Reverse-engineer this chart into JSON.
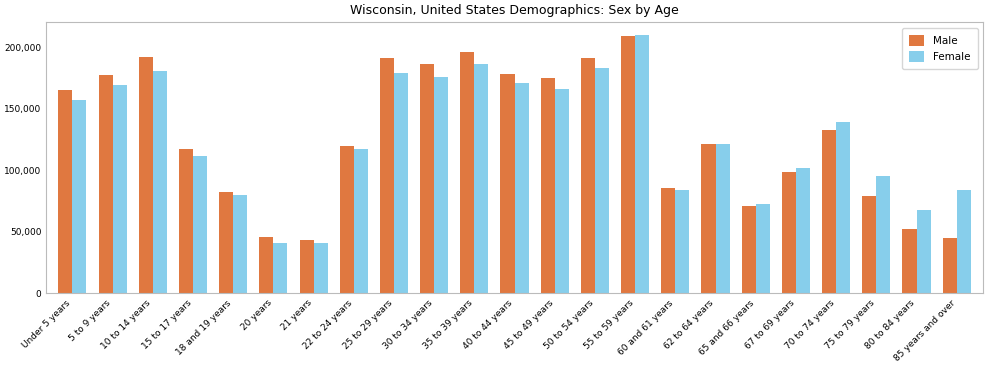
{
  "title": "Wisconsin, United States Demographics: Sex by Age",
  "categories": [
    "Under 5 years",
    "5 to 9 years",
    "10 to 14 years",
    "15 to 17 years",
    "18 and 19 years",
    "20 years",
    "21 years",
    "22 to 24 years",
    "25 to 29 years",
    "30 to 34 years",
    "35 to 39 years",
    "40 to 44 years",
    "45 to 49 years",
    "50 to 54 years",
    "55 to 59 years",
    "60 and 61 years",
    "62 to 64 years",
    "65 and 66 years",
    "67 to 69 years",
    "70 to 74 years",
    "75 to 79 years",
    "80 to 84 years",
    "85 years and over"
  ],
  "male": [
    165000,
    177000,
    192000,
    117000,
    82000,
    46000,
    43000,
    120000,
    191000,
    186000,
    196000,
    178000,
    175000,
    191000,
    209000,
    86000,
    121000,
    71000,
    99000,
    133000,
    79000,
    52000,
    45000
  ],
  "female": [
    157000,
    169000,
    181000,
    112000,
    80000,
    41000,
    41000,
    117000,
    179000,
    176000,
    186000,
    171000,
    166000,
    183000,
    210000,
    84000,
    121000,
    73000,
    102000,
    139000,
    95000,
    68000,
    84000
  ],
  "male_color": "#E07840",
  "female_color": "#87CEEB",
  "bar_width": 0.35,
  "ylim": [
    0,
    220000
  ],
  "ytick_step": 50000,
  "legend_labels": [
    "Male",
    "Female"
  ],
  "title_fontsize": 9,
  "tick_fontsize": 6.5,
  "background_color": "#ffffff",
  "plot_bg_color": "#ffffff",
  "spine_color": "#bbbbbb"
}
